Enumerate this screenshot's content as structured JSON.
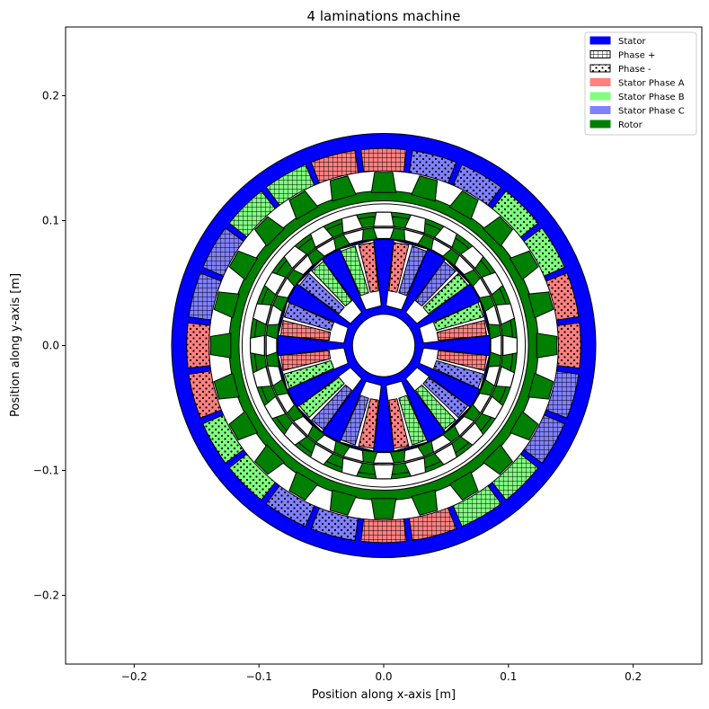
{
  "title": "4 laminations machine",
  "xlabel": "Position along x-axis [m]",
  "ylabel": "Position along y-axis [m]",
  "xlim": [
    -0.255,
    0.255
  ],
  "ylim": [
    -0.255,
    0.255
  ],
  "x_ticks": [
    {
      "value": -0.2,
      "label": "−0.2"
    },
    {
      "value": -0.1,
      "label": "−0.1"
    },
    {
      "value": 0.0,
      "label": "0.0"
    },
    {
      "value": 0.1,
      "label": "0.1"
    },
    {
      "value": 0.2,
      "label": "0.2"
    }
  ],
  "y_ticks": [
    {
      "value": 0.2,
      "label": "0.2"
    },
    {
      "value": 0.1,
      "label": "0.1"
    },
    {
      "value": 0.0,
      "label": "0.0"
    },
    {
      "value": -0.1,
      "label": "−0.1"
    },
    {
      "value": -0.2,
      "label": "−0.2"
    }
  ],
  "legend": {
    "placement": "top-right",
    "items": [
      {
        "label": "Stator",
        "color": "#0000ff",
        "hatch": "none"
      },
      {
        "label": "Phase +",
        "color": "#ffffff",
        "hatch": "grid"
      },
      {
        "label": "Phase -",
        "color": "#ffffff",
        "hatch": "dots"
      },
      {
        "label": "Stator Phase A",
        "color": "#ff8080",
        "hatch": "none"
      },
      {
        "label": "Stator Phase B",
        "color": "#80ff80",
        "hatch": "none"
      },
      {
        "label": "Stator Phase C",
        "color": "#8080ff",
        "hatch": "none"
      },
      {
        "label": "Rotor",
        "color": "#008000",
        "hatch": "none"
      }
    ]
  },
  "colors": {
    "stator": "#0000ff",
    "rotor": "#008000",
    "phase_a": "#ff8080",
    "phase_b": "#80ff80",
    "phase_c": "#8080ff",
    "background": "#ffffff"
  },
  "machine": {
    "outer_stator": {
      "outer_radius": 0.17,
      "inner_radius": 0.14,
      "slots": 24,
      "slot_depth": 0.018
    },
    "outer_rotor": {
      "outer_radius": 0.14,
      "inner_radius": 0.112,
      "teeth_out": 24,
      "teeth_in": 24
    },
    "inner_rotor": {
      "outer_radius": 0.112,
      "inner_radius": 0.087,
      "teeth_out": 24,
      "teeth_in": 24
    },
    "inner_stator": {
      "outer_radius": 0.085,
      "bore_radius": 0.025,
      "teeth": 12
    }
  }
}
